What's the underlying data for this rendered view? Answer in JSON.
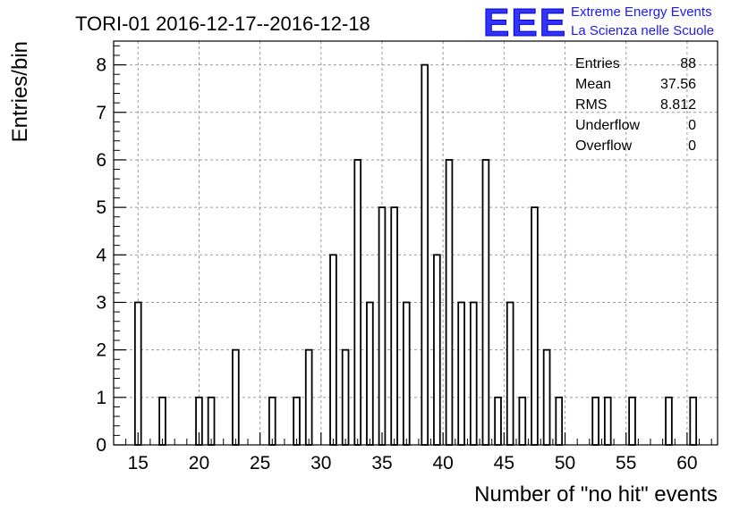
{
  "chart_data": {
    "type": "bar",
    "title": "TORI-01 2016-12-17--2016-12-18",
    "xlabel": "Number of \"no hit\" events",
    "ylabel": "Entries/bin",
    "xlim": [
      13,
      62.5
    ],
    "ylim": [
      0,
      8.5
    ],
    "x_ticks": [
      "15",
      "20",
      "25",
      "30",
      "35",
      "40",
      "45",
      "50",
      "55",
      "60"
    ],
    "y_ticks": [
      "0",
      "1",
      "2",
      "3",
      "4",
      "5",
      "6",
      "7",
      "8"
    ],
    "grid": true,
    "bin_width": 0.5,
    "bins": [
      {
        "x": 15,
        "value": 3
      },
      {
        "x": 17,
        "value": 1
      },
      {
        "x": 20,
        "value": 1
      },
      {
        "x": 21,
        "value": 1
      },
      {
        "x": 23,
        "value": 2
      },
      {
        "x": 26,
        "value": 1
      },
      {
        "x": 28,
        "value": 1
      },
      {
        "x": 29,
        "value": 2
      },
      {
        "x": 31,
        "value": 4
      },
      {
        "x": 32,
        "value": 2
      },
      {
        "x": 33,
        "value": 6
      },
      {
        "x": 34,
        "value": 3
      },
      {
        "x": 35,
        "value": 5
      },
      {
        "x": 36,
        "value": 5
      },
      {
        "x": 37,
        "value": 3
      },
      {
        "x": 38.5,
        "value": 8
      },
      {
        "x": 39.5,
        "value": 4
      },
      {
        "x": 40.5,
        "value": 6
      },
      {
        "x": 41.5,
        "value": 3
      },
      {
        "x": 42.5,
        "value": 3
      },
      {
        "x": 43.5,
        "value": 6
      },
      {
        "x": 44.5,
        "value": 1
      },
      {
        "x": 45.5,
        "value": 3
      },
      {
        "x": 46.5,
        "value": 1
      },
      {
        "x": 47.5,
        "value": 5
      },
      {
        "x": 48.5,
        "value": 2
      },
      {
        "x": 49.5,
        "value": 1
      },
      {
        "x": 52.5,
        "value": 1
      },
      {
        "x": 53.5,
        "value": 1
      },
      {
        "x": 55.5,
        "value": 1
      },
      {
        "x": 58.5,
        "value": 1
      },
      {
        "x": 60.5,
        "value": 1
      }
    ],
    "stats": [
      {
        "label": "Entries",
        "value": "88"
      },
      {
        "label": "Mean",
        "value": "37.56"
      },
      {
        "label": "RMS",
        "value": "8.812"
      },
      {
        "label": "Underflow",
        "value": "0"
      },
      {
        "label": "Overflow",
        "value": "0"
      }
    ],
    "legend_position": "top-right"
  },
  "logo": {
    "mark": "EEE",
    "line1": "Extreme Energy Events",
    "line2": "La Scienza nelle Scuole",
    "color": "#1a1aff"
  }
}
